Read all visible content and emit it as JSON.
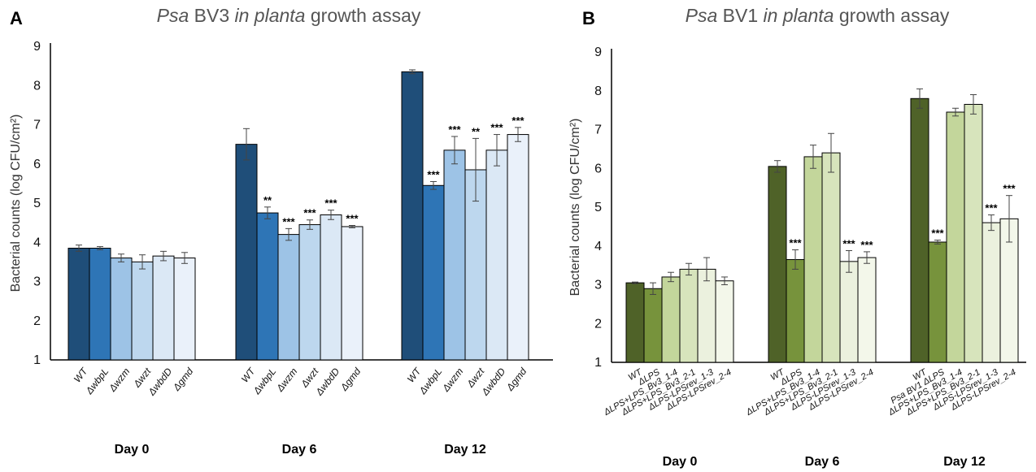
{
  "chart_data": [
    {
      "id": "A",
      "type": "bar",
      "panel_label": "A",
      "title_parts": [
        "Psa",
        " BV3 ",
        "in planta",
        " growth assay"
      ],
      "ylabel": "Bacterial counts (log CFU/cm²)",
      "ylim": [
        1,
        9
      ],
      "yticks": [
        1,
        2,
        3,
        4,
        5,
        6,
        7,
        8,
        9
      ],
      "group_labels": [
        "Day 0",
        "Day 6",
        "Day 12"
      ],
      "strain_labels": [
        "WT",
        "ΔwbpL",
        "Δwzm",
        "Δwzt",
        "ΔwbdD",
        "Δgmd"
      ],
      "colors": [
        "#1f4e79",
        "#2e75b6",
        "#9dc3e6",
        "#bdd7ee",
        "#dbe8f5",
        "#eaf1fa"
      ],
      "groups": [
        {
          "name": "Day 0",
          "values": [
            3.85,
            3.85,
            3.6,
            3.5,
            3.65,
            3.6
          ],
          "errors": [
            0.08,
            0.04,
            0.1,
            0.18,
            0.12,
            0.14
          ],
          "sig": [
            "",
            "",
            "",
            "",
            "",
            ""
          ]
        },
        {
          "name": "Day 6",
          "values": [
            6.5,
            4.75,
            4.2,
            4.45,
            4.7,
            4.4
          ],
          "errors": [
            0.4,
            0.15,
            0.15,
            0.12,
            0.12,
            0.03
          ],
          "sig": [
            "",
            "**",
            "***",
            "***",
            "***",
            "***"
          ]
        },
        {
          "name": "Day 12",
          "values": [
            8.35,
            5.45,
            6.35,
            5.85,
            6.35,
            6.75
          ],
          "errors": [
            0.05,
            0.1,
            0.35,
            0.8,
            0.4,
            0.18
          ],
          "sig": [
            "",
            "***",
            "***",
            "**",
            "***",
            "***"
          ]
        }
      ]
    },
    {
      "id": "B",
      "type": "bar",
      "panel_label": "B",
      "title_parts": [
        "Psa",
        " BV1 ",
        "in planta",
        " growth assay"
      ],
      "ylabel": "Bacterial counts (log CFU/cm²)",
      "ylim": [
        1,
        9
      ],
      "yticks": [
        1,
        2,
        3,
        4,
        5,
        6,
        7,
        8,
        9
      ],
      "group_labels": [
        "Day 0",
        "Day 6",
        "Day 12"
      ],
      "strain_labels_by_group": [
        [
          "WT",
          "ΔLPS",
          "ΔLPS+LPS_Bv3_1-4",
          "ΔLPS+LPS_Bv3_2-1",
          "ΔLPS-LPSrev_1-3",
          "ΔLPS-LPSrev_2-4"
        ],
        [
          "WT",
          "ΔLPS",
          "ΔLPS+LPS_Bv3_1-4",
          "ΔLPS+LPS_Bv3_2-1",
          "ΔLPS-LPSrev_1-3",
          "ΔLPS-LPSrev_2-4"
        ],
        [
          "WT",
          "Psa BV1 ΔLPS",
          "ΔLPS+LPS_Bv3_1-4",
          "ΔLPS+LPS_Bv3_2-1",
          "ΔLPS-LPSrev_1-3",
          "ΔLPS-LPSrev_2-4"
        ]
      ],
      "colors": [
        "#4f6228",
        "#77933c",
        "#c3d69b",
        "#d7e4bc",
        "#ebf1de",
        "#f3f7ea"
      ],
      "groups": [
        {
          "name": "Day 0",
          "values": [
            3.05,
            2.9,
            3.2,
            3.4,
            3.4,
            3.1
          ],
          "errors": [
            0.02,
            0.15,
            0.12,
            0.15,
            0.3,
            0.1
          ],
          "sig": [
            "",
            "",
            "",
            "",
            "",
            ""
          ]
        },
        {
          "name": "Day 6",
          "values": [
            6.05,
            3.65,
            6.3,
            6.4,
            3.6,
            3.7
          ],
          "errors": [
            0.15,
            0.25,
            0.3,
            0.5,
            0.28,
            0.15
          ],
          "sig": [
            "",
            "***",
            "",
            "",
            "***",
            "***"
          ]
        },
        {
          "name": "Day 12",
          "values": [
            7.8,
            4.1,
            7.45,
            7.65,
            4.6,
            4.7
          ],
          "errors": [
            0.25,
            0.05,
            0.1,
            0.25,
            0.2,
            0.6
          ],
          "sig": [
            "",
            "***",
            "",
            "",
            "***",
            "***"
          ]
        }
      ]
    }
  ]
}
